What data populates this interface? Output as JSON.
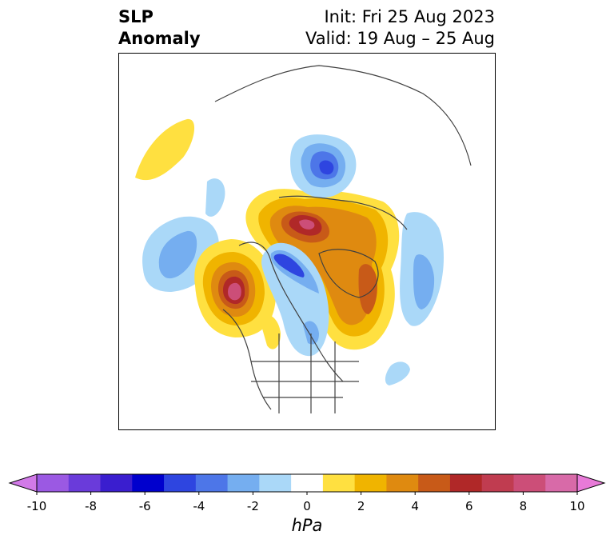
{
  "title": {
    "variable_line1": "SLP",
    "variable_line2": "Anomaly",
    "init": "Init: Fri 25 Aug 2023",
    "valid": "Valid: 19 Aug – 25 Aug"
  },
  "map": {
    "projection": "north-polar-stereographic",
    "field": "sea level pressure anomaly"
  },
  "colorbar": {
    "units": "hPa",
    "extend": "both",
    "ticks": [
      "-10",
      "-8",
      "-6",
      "-4",
      "-2",
      "0",
      "2",
      "4",
      "6",
      "8",
      "10"
    ],
    "colors": [
      "#d27ae8",
      "#9b59e3",
      "#6a3bda",
      "#3a1ecf",
      "#0000cd",
      "#2e45e0",
      "#4d76e8",
      "#75aef0",
      "#aad8f8",
      "#ffffff",
      "#ffe040",
      "#f0b400",
      "#df8a10",
      "#c85a18",
      "#b02828",
      "#c03c50",
      "#cc4e78",
      "#d86aa8",
      "#e87ad8"
    ]
  }
}
